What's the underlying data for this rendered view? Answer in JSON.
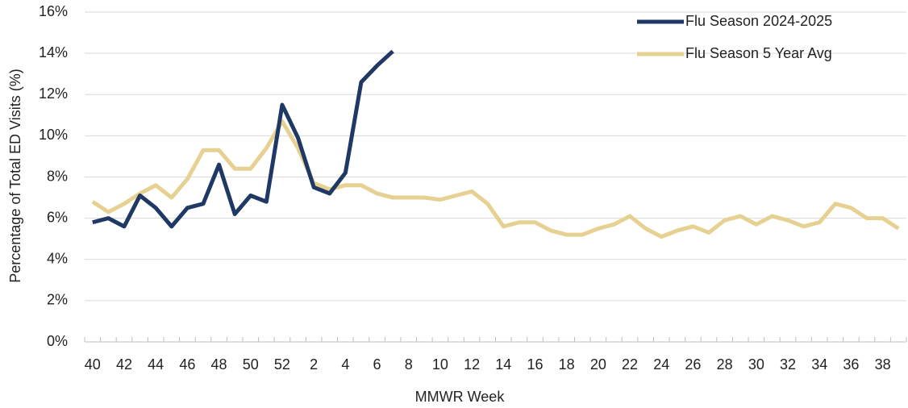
{
  "chart_data": {
    "type": "line",
    "x_label": "MMWR Week",
    "y_label": "Percentage of Total ED Visits (%)",
    "categories": [
      "40",
      null,
      "42",
      null,
      "44",
      null,
      "46",
      null,
      "48",
      null,
      "50",
      null,
      "52",
      null,
      "2",
      null,
      "4",
      null,
      "6",
      null,
      "8",
      null,
      "10",
      null,
      "12",
      null,
      "14",
      null,
      "16",
      null,
      "18",
      null,
      "20",
      null,
      "22",
      null,
      "24",
      null,
      "26",
      null,
      "28",
      null,
      "30",
      null,
      "32",
      null,
      "34",
      null,
      "36",
      null,
      "38",
      null
    ],
    "series": [
      {
        "name": "Flu Season 2024-2025",
        "color": "#1f3864",
        "values": [
          5.8,
          6.0,
          5.6,
          7.1,
          6.5,
          5.6,
          6.5,
          6.7,
          8.6,
          6.2,
          7.1,
          6.8,
          11.5,
          9.9,
          7.5,
          7.2,
          8.2,
          12.6,
          13.4,
          14.1,
          null,
          null,
          null,
          null,
          null,
          null,
          null,
          null,
          null,
          null,
          null,
          null,
          null,
          null,
          null,
          null,
          null,
          null,
          null,
          null,
          null,
          null,
          null,
          null,
          null,
          null,
          null,
          null,
          null,
          null,
          null,
          null
        ]
      },
      {
        "name": "Flu Season 5 Year Avg",
        "color": "#e6d193",
        "values": [
          6.8,
          6.3,
          6.7,
          7.2,
          7.6,
          7.0,
          7.9,
          9.3,
          9.3,
          8.4,
          8.4,
          9.4,
          10.7,
          9.4,
          7.7,
          7.4,
          7.6,
          7.6,
          7.2,
          7.0,
          7.0,
          7.0,
          6.9,
          7.1,
          7.3,
          6.7,
          5.6,
          5.8,
          5.8,
          5.4,
          5.2,
          5.2,
          5.5,
          5.7,
          6.1,
          5.5,
          5.1,
          5.4,
          5.6,
          5.3,
          5.9,
          6.1,
          5.7,
          6.1,
          5.9,
          5.6,
          5.8,
          6.7,
          6.5,
          6.0,
          6.0,
          5.5
        ]
      }
    ],
    "ylim": [
      0,
      16
    ],
    "yticks": [
      {
        "value": 0,
        "label": "0%"
      },
      {
        "value": 2,
        "label": "2%"
      },
      {
        "value": 4,
        "label": "4%"
      },
      {
        "value": 6,
        "label": "6%"
      },
      {
        "value": 8,
        "label": "8%"
      },
      {
        "value": 10,
        "label": "10%"
      },
      {
        "value": 12,
        "label": "12%"
      },
      {
        "value": 14,
        "label": "14%"
      },
      {
        "value": 16,
        "label": "16%"
      }
    ],
    "grid": true,
    "legend": "top-right"
  }
}
